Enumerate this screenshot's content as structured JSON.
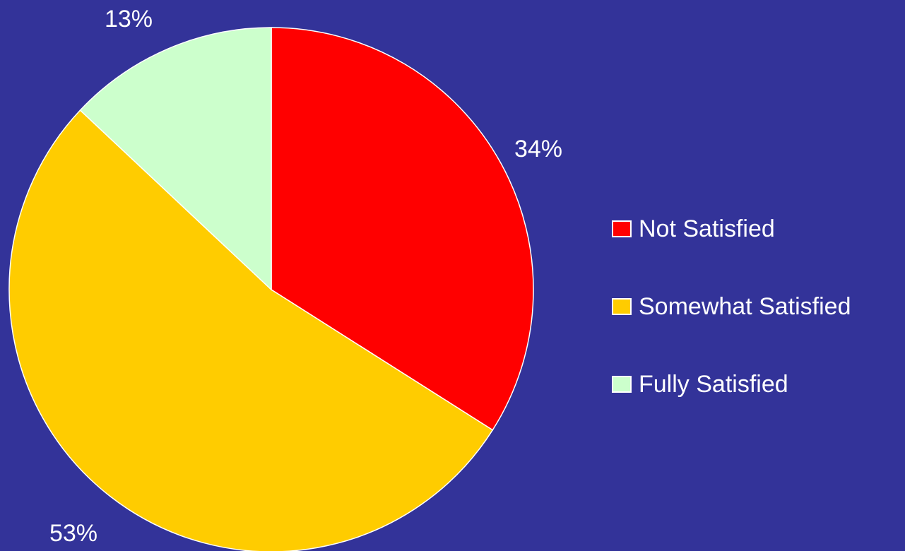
{
  "background_color": "#333399",
  "chart_data": {
    "type": "pie",
    "title": "",
    "slices": [
      {
        "label": "Not Satisfied",
        "value": 34,
        "value_label": "34%",
        "color": "#FF0000"
      },
      {
        "label": "Somewhat Satisfied",
        "value": 53,
        "value_label": "53%",
        "color": "#FFCC00"
      },
      {
        "label": "Fully Satisfied",
        "value": 13,
        "value_label": "13%",
        "color": "#CCFFCC"
      }
    ],
    "start_angle": "12 o'clock",
    "direction": "clockwise",
    "slice_border_color": "#FFFFFF",
    "legend_position": "right"
  },
  "legend": {
    "items": [
      {
        "label": "Not Satisfied",
        "color": "#FF0000"
      },
      {
        "label": "Somewhat Satisfied",
        "color": "#FFCC00"
      },
      {
        "label": "Fully Satisfied",
        "color": "#CCFFCC"
      }
    ]
  }
}
